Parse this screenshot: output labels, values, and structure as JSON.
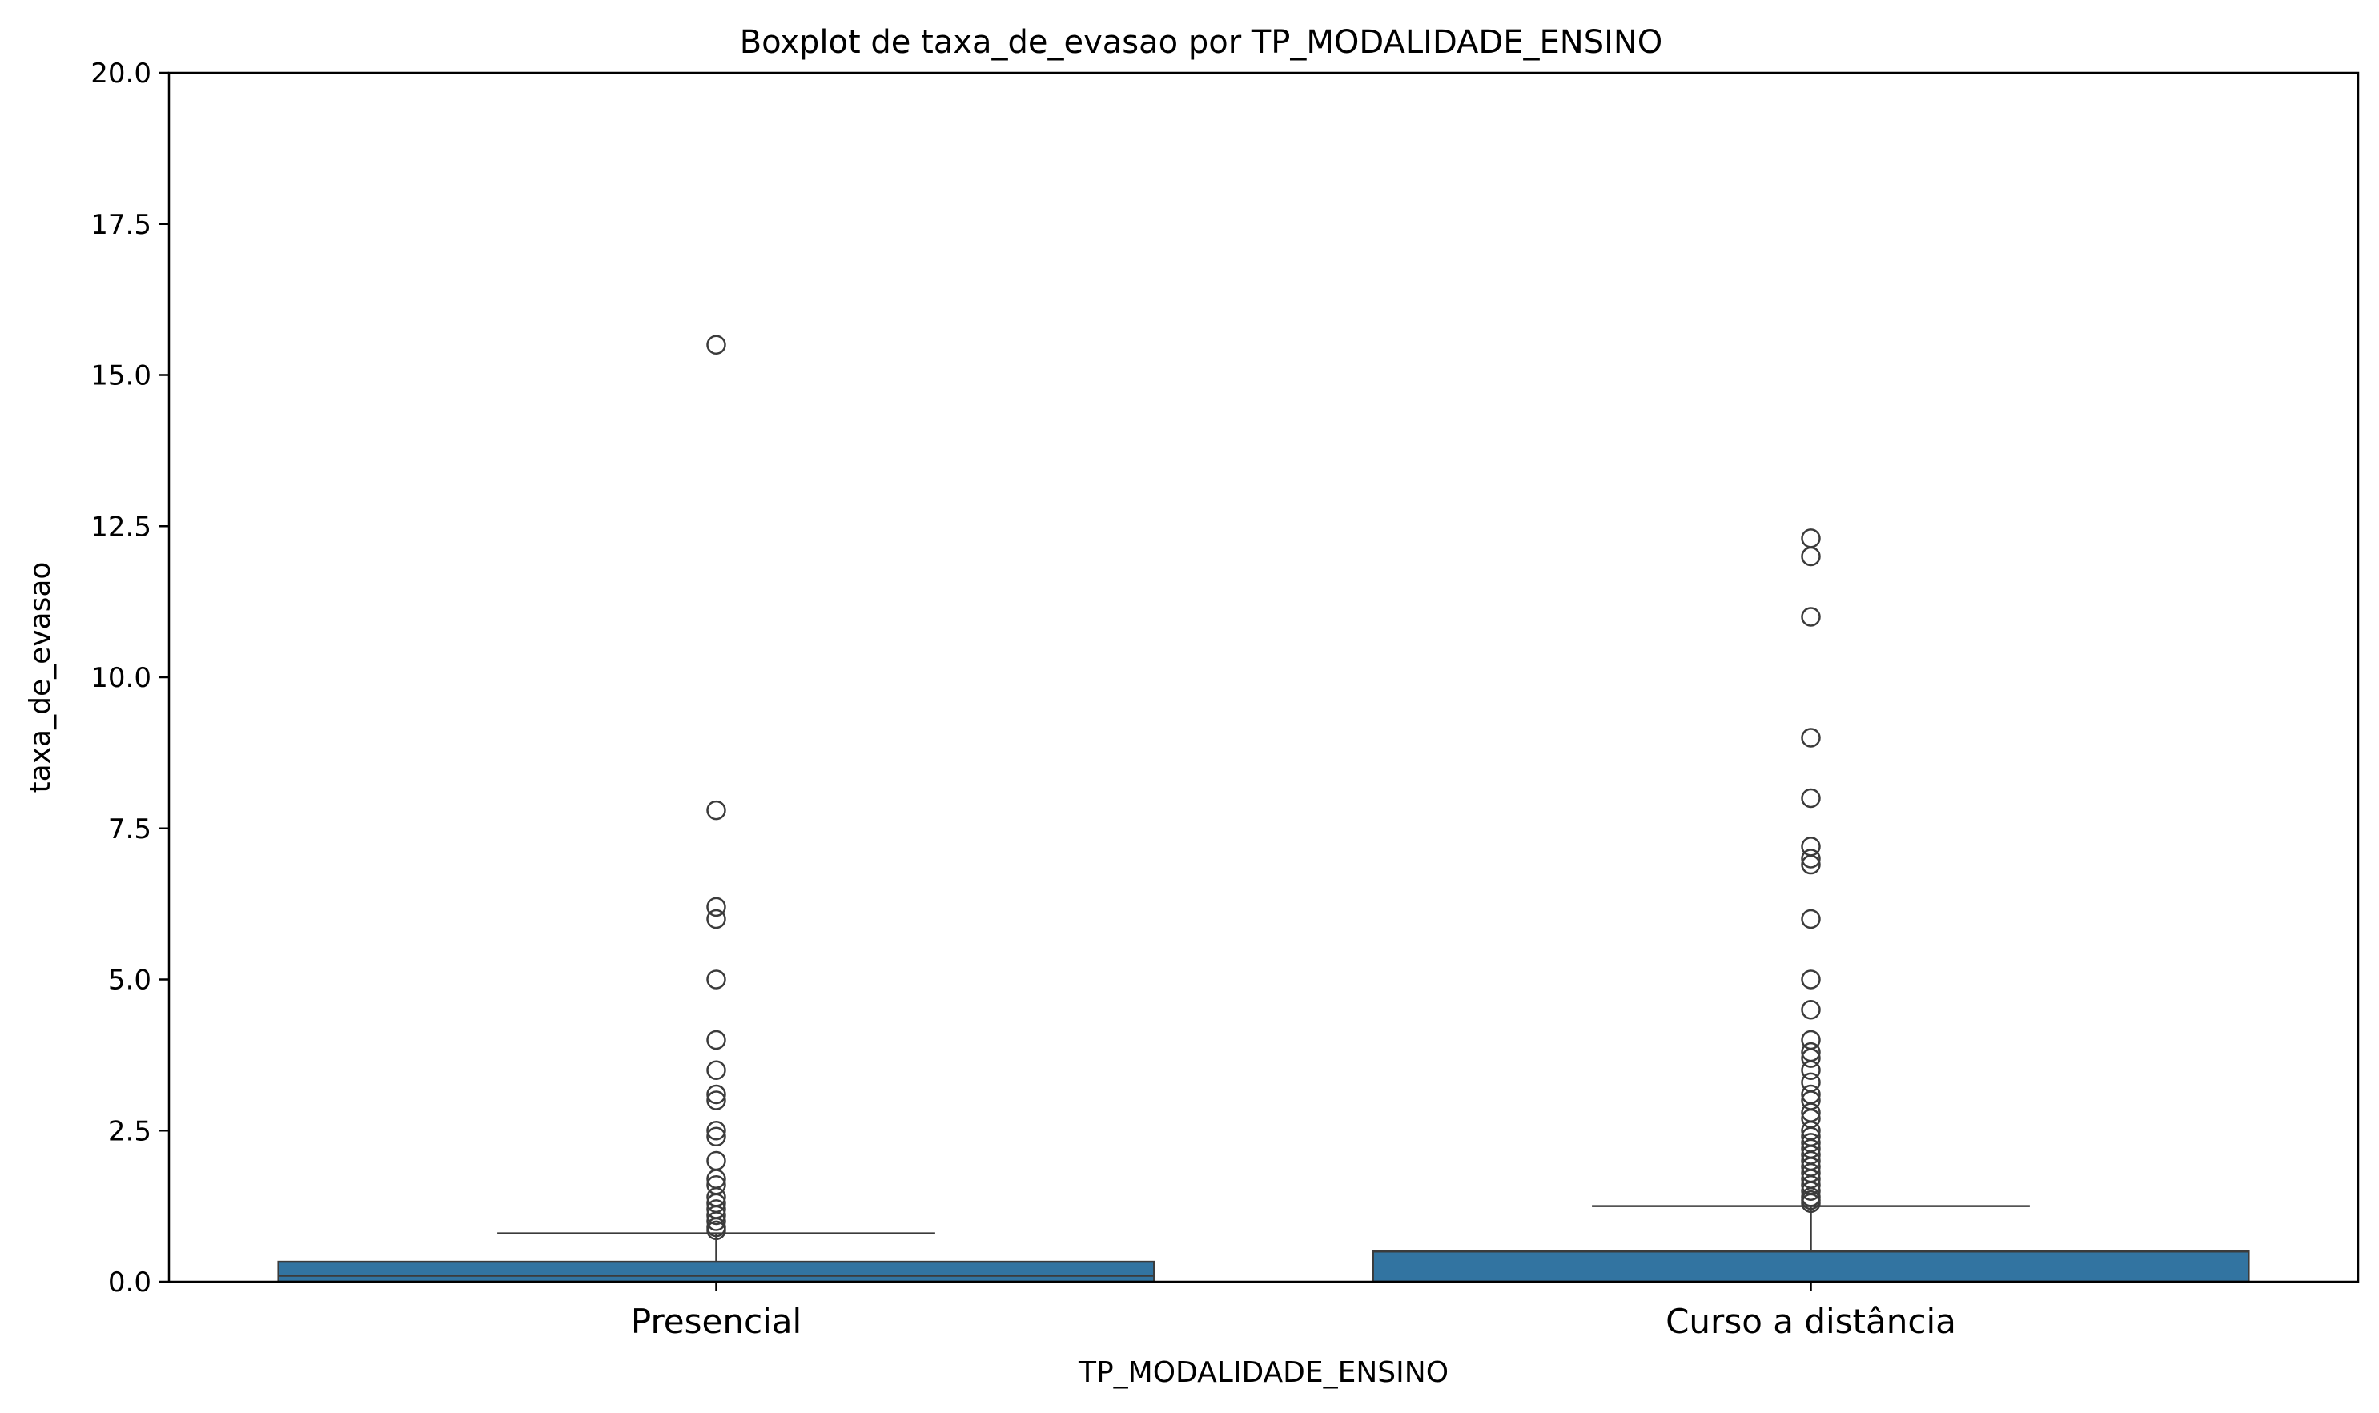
{
  "chart_data": {
    "type": "box",
    "title": "Boxplot de taxa_de_evasao por TP_MODALIDADE_ENSINO",
    "xlabel": "TP_MODALIDADE_ENSINO",
    "ylabel": "taxa_de_evasao",
    "ylim": [
      0,
      20
    ],
    "yticks": [
      "0.0",
      "2.5",
      "5.0",
      "7.5",
      "10.0",
      "12.5",
      "15.0",
      "17.5",
      "20.0"
    ],
    "ytick_values": [
      0,
      2.5,
      5,
      7.5,
      10,
      12.5,
      15,
      17.5,
      20
    ],
    "grid": false,
    "colors": {
      "box_fill": "#3274a1",
      "box_edge": "#3b3b3b",
      "outlier_edge": "#3b3b3b",
      "axis": "#000000"
    },
    "categories": [
      "Presencial",
      "Curso a distância"
    ],
    "boxes": [
      {
        "category": "Presencial",
        "whisker_low": 0.0,
        "q1": 0.0,
        "median": 0.1,
        "q3": 0.33,
        "whisker_high": 0.8,
        "outliers": [
          15.5,
          7.8,
          6.2,
          6.0,
          5.0,
          4.0,
          3.5,
          3.1,
          3.0,
          2.5,
          2.4,
          2.0,
          1.7,
          1.6,
          1.4,
          1.3,
          1.2,
          1.1,
          1.0,
          0.9,
          0.85
        ]
      },
      {
        "category": "Curso a distância",
        "whisker_low": 0.0,
        "q1": 0.0,
        "median": 0.0,
        "q3": 0.5,
        "whisker_high": 1.25,
        "outliers": [
          12.3,
          12.0,
          11.0,
          9.0,
          8.0,
          7.2,
          7.0,
          6.9,
          6.0,
          5.0,
          4.5,
          4.0,
          3.8,
          3.7,
          3.5,
          3.3,
          3.1,
          3.0,
          2.8,
          2.7,
          2.5,
          2.4,
          2.3,
          2.2,
          2.1,
          2.0,
          1.9,
          1.8,
          1.7,
          1.6,
          1.5,
          1.4,
          1.35,
          1.3
        ]
      }
    ]
  }
}
